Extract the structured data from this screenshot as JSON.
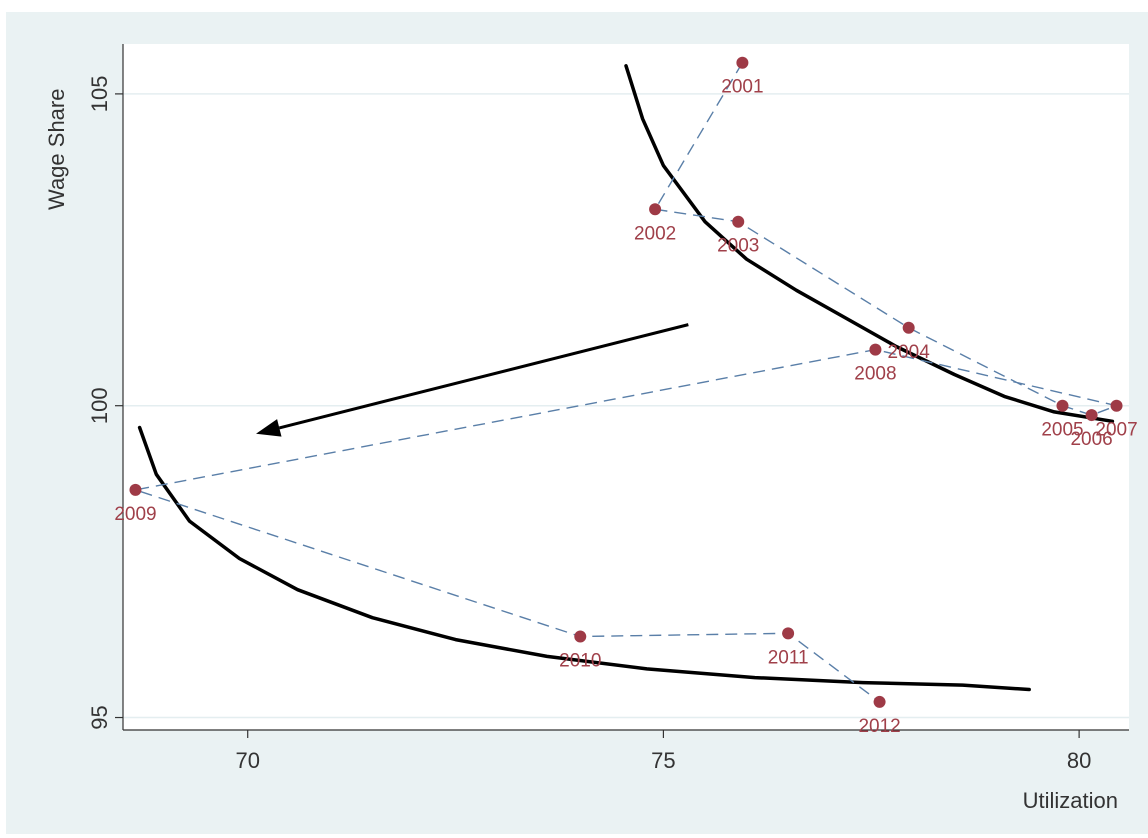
{
  "chart_data": {
    "type": "scatter",
    "title": "",
    "xlabel": "Utilization",
    "ylabel": "Wage Share",
    "xlim": [
      68.5,
      80.6
    ],
    "ylim": [
      94.8,
      105.8
    ],
    "x_ticks": [
      70,
      75,
      80
    ],
    "y_ticks": [
      95,
      100,
      105
    ],
    "x_tick_labels": [
      "70",
      "75",
      "80"
    ],
    "y_tick_labels": [
      "95",
      "100",
      "105"
    ],
    "grid": "horizontal",
    "legend": "none",
    "series": [
      {
        "style": "dashed-connected-scatter",
        "points": [
          {
            "label": "2001",
            "x": 75.95,
            "y": 105.5
          },
          {
            "label": "2002",
            "x": 74.9,
            "y": 103.15
          },
          {
            "label": "2003",
            "x": 75.9,
            "y": 102.95
          },
          {
            "label": "2004",
            "x": 77.95,
            "y": 101.25
          },
          {
            "label": "2005",
            "x": 79.8,
            "y": 100.0
          },
          {
            "label": "2006",
            "x": 80.15,
            "y": 99.85
          },
          {
            "label": "2007",
            "x": 80.45,
            "y": 100.0
          },
          {
            "label": "2008",
            "x": 77.55,
            "y": 100.9
          },
          {
            "label": "2009",
            "x": 68.65,
            "y": 98.65
          },
          {
            "label": "2010",
            "x": 74.0,
            "y": 96.3
          },
          {
            "label": "2011",
            "x": 76.5,
            "y": 96.35
          },
          {
            "label": "2012",
            "x": 77.6,
            "y": 95.25
          }
        ]
      }
    ],
    "curves": [
      {
        "name": "upper-curve",
        "points": [
          [
            74.55,
            105.45
          ],
          [
            74.75,
            104.6
          ],
          [
            75.0,
            103.85
          ],
          [
            75.5,
            102.95
          ],
          [
            76.0,
            102.35
          ],
          [
            76.6,
            101.85
          ],
          [
            77.2,
            101.4
          ],
          [
            77.8,
            100.95
          ],
          [
            78.5,
            100.5
          ],
          [
            79.1,
            100.15
          ],
          [
            79.7,
            99.9
          ],
          [
            80.4,
            99.75
          ]
        ]
      },
      {
        "name": "lower-curve",
        "points": [
          [
            68.7,
            99.65
          ],
          [
            68.9,
            98.9
          ],
          [
            69.3,
            98.15
          ],
          [
            69.9,
            97.55
          ],
          [
            70.6,
            97.05
          ],
          [
            71.5,
            96.6
          ],
          [
            72.5,
            96.25
          ],
          [
            73.6,
            95.98
          ],
          [
            74.8,
            95.78
          ],
          [
            76.1,
            95.64
          ],
          [
            77.4,
            95.56
          ],
          [
            78.6,
            95.52
          ],
          [
            79.4,
            95.45
          ]
        ]
      }
    ],
    "arrow": {
      "from": [
        75.3,
        101.3
      ],
      "to": [
        70.1,
        99.55
      ]
    },
    "colors": {
      "points": "#9e3a46",
      "labels": "#a0404a",
      "dashed_line": "#5a7fa8",
      "curves": "#000000",
      "background": "#eaf2f3",
      "plot_area": "#ffffff"
    }
  }
}
